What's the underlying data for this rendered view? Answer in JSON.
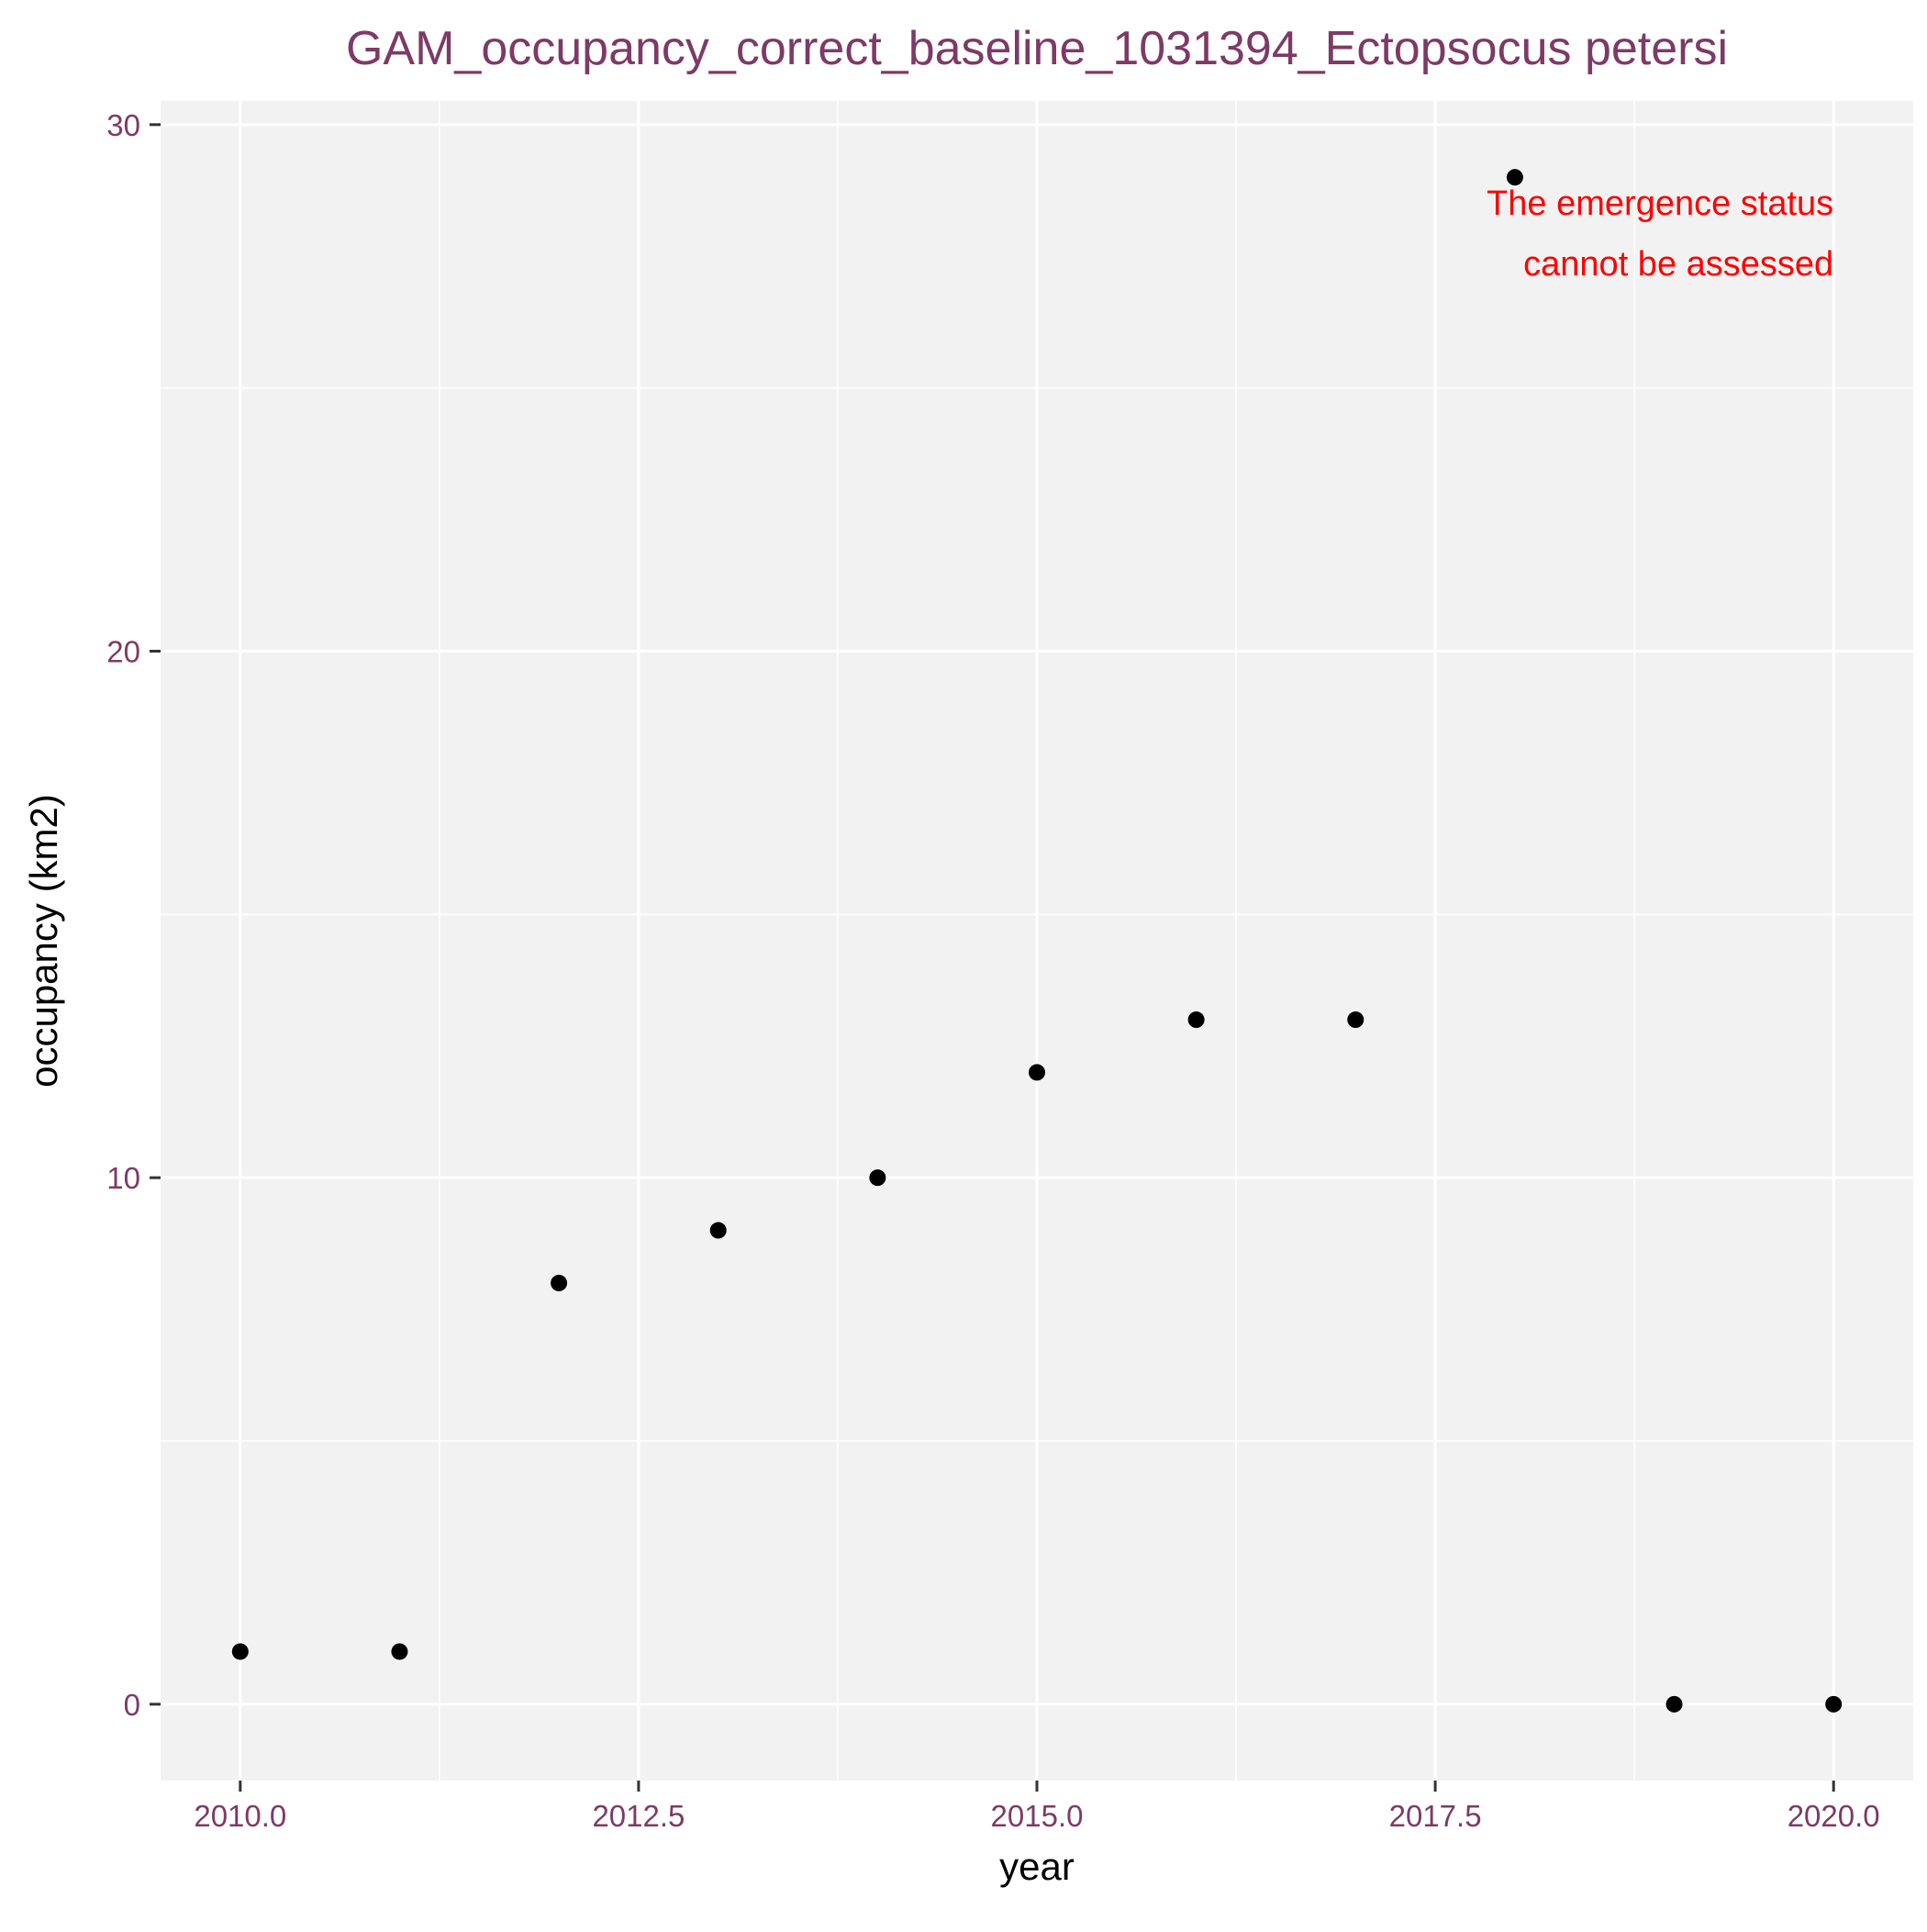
{
  "chart_data": {
    "type": "scatter",
    "title": "GAM_occupancy_correct_baseline_1031394_Ectopsocus petersi",
    "xlabel": "year",
    "ylabel": "occupancy (km2)",
    "xlim": [
      2009.5,
      2020.5
    ],
    "ylim": [
      -1.45,
      30.45
    ],
    "x_ticks": [
      2010.0,
      2012.5,
      2015.0,
      2017.5,
      2020.0
    ],
    "x_tick_labels": [
      "2010.0",
      "2012.5",
      "2015.0",
      "2017.5",
      "2020.0"
    ],
    "y_ticks": [
      0,
      10,
      20,
      30
    ],
    "y_tick_labels": [
      "0",
      "10",
      "20",
      "30"
    ],
    "grid": true,
    "points": [
      {
        "x": 2010,
        "y": 1
      },
      {
        "x": 2011,
        "y": 1
      },
      {
        "x": 2012,
        "y": 8
      },
      {
        "x": 2013,
        "y": 9
      },
      {
        "x": 2014,
        "y": 10
      },
      {
        "x": 2015,
        "y": 12
      },
      {
        "x": 2016,
        "y": 13
      },
      {
        "x": 2017,
        "y": 13
      },
      {
        "x": 2018,
        "y": 29
      },
      {
        "x": 2019,
        "y": 0
      },
      {
        "x": 2020,
        "y": 0
      }
    ],
    "annotation": {
      "lines": [
        "The emergence status",
        "cannot be assessed"
      ],
      "x": 2020,
      "y": 28.5
    },
    "colors": {
      "title": "#7e3a66",
      "tick_label": "#7e3a66",
      "axis_label": "#000000",
      "annotation": "#ff0000",
      "panel": "#f2f2f2",
      "grid": "#ffffff",
      "point": "#000000"
    }
  }
}
